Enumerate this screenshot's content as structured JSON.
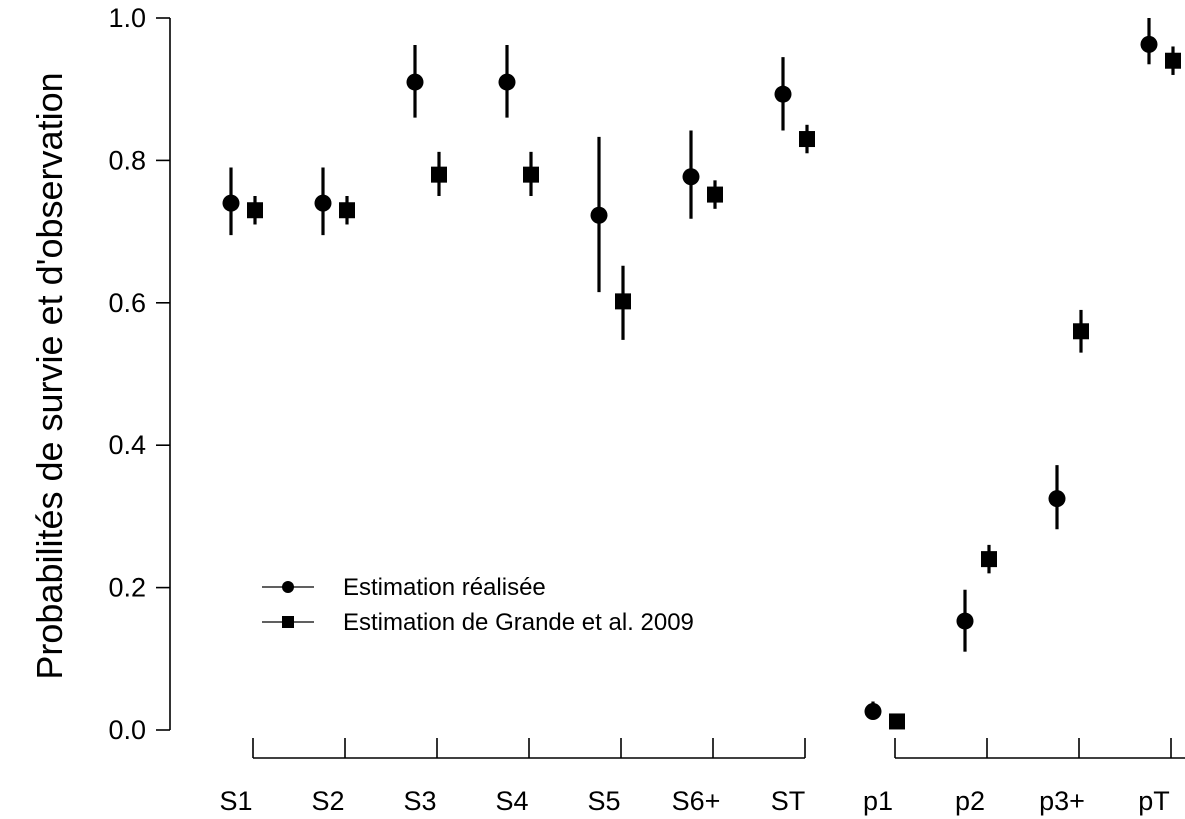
{
  "chart_data": {
    "type": "scatter",
    "title": "",
    "xlabel": "",
    "ylabel": "Probabilités de survie et d'observation",
    "ylim": [
      0,
      1
    ],
    "yticks": [
      "0.0",
      "0.2",
      "0.4",
      "0.6",
      "0.8",
      "1.0"
    ],
    "grid": false,
    "legend_position": "bottom-left",
    "categories": [
      "S1",
      "S2",
      "S3",
      "S4",
      "S5",
      "S6+",
      "ST",
      "p1",
      "p2",
      "p3+",
      "pT"
    ],
    "series": [
      {
        "name": "Estimation réalisée",
        "marker": "circle",
        "values": [
          0.74,
          0.74,
          0.91,
          0.91,
          0.723,
          0.777,
          0.893,
          0.026,
          0.153,
          0.325,
          0.963
        ],
        "lower": [
          0.695,
          0.695,
          0.86,
          0.86,
          0.615,
          0.718,
          0.842,
          0.016,
          0.11,
          0.282,
          0.935
        ],
        "upper": [
          0.79,
          0.79,
          0.962,
          0.962,
          0.833,
          0.842,
          0.945,
          0.04,
          0.197,
          0.372,
          1.0
        ]
      },
      {
        "name": "Estimation de Grande et al. 2009",
        "marker": "square",
        "values": [
          0.73,
          0.73,
          0.78,
          0.78,
          0.602,
          0.752,
          0.83,
          0.012,
          0.24,
          0.56,
          0.94
        ],
        "lower": [
          0.71,
          0.71,
          0.75,
          0.75,
          0.548,
          0.732,
          0.81,
          0.008,
          0.22,
          0.53,
          0.92
        ],
        "upper": [
          0.75,
          0.75,
          0.812,
          0.812,
          0.652,
          0.772,
          0.85,
          0.016,
          0.26,
          0.59,
          0.96
        ]
      }
    ]
  }
}
